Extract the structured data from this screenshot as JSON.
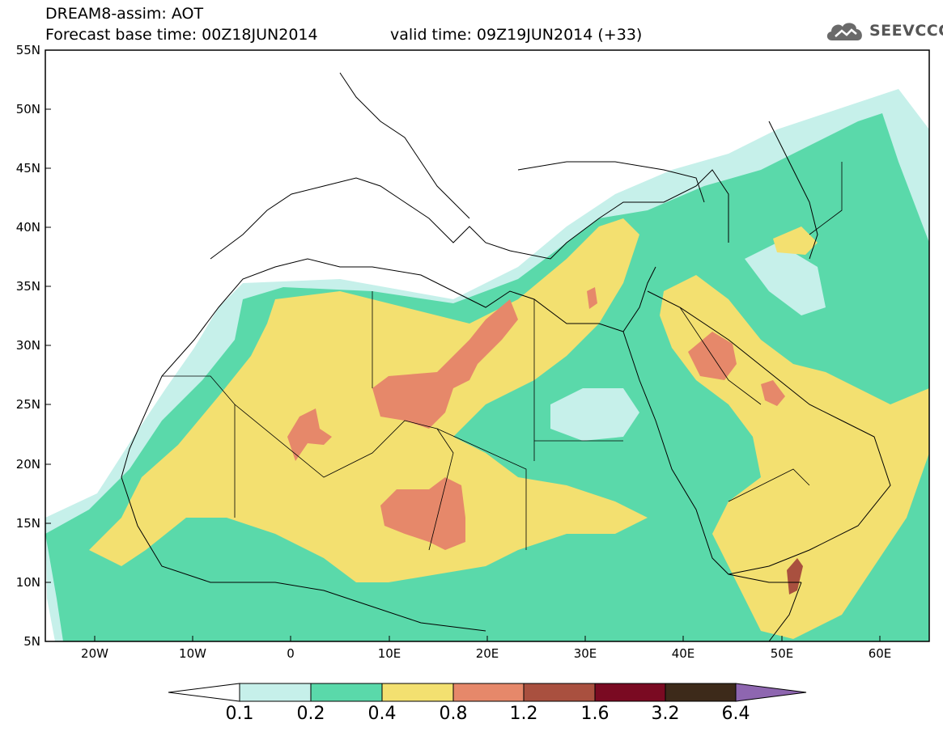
{
  "header": {
    "title_line1": "DREAM8-assim: AOT",
    "forecast_base": "Forecast base time: 00Z18JUN2014",
    "valid_time": "valid time: 09Z19JUN2014 (+33)"
  },
  "logo": {
    "text": "SEEVCCC",
    "icon": "cloud-logo-icon"
  },
  "axes": {
    "lat_ticks": [
      "55N",
      "50N",
      "45N",
      "40N",
      "35N",
      "30N",
      "25N",
      "20N",
      "15N",
      "10N",
      "5N"
    ],
    "lon_ticks": [
      "20W",
      "10W",
      "0",
      "10E",
      "20E",
      "30E",
      "40E",
      "50E",
      "60E"
    ],
    "lon_range": [
      -25,
      65
    ],
    "lat_range": [
      5,
      55
    ]
  },
  "legend": {
    "labels": [
      "0.1",
      "0.2",
      "0.4",
      "0.8",
      "1.2",
      "1.6",
      "3.2",
      "6.4"
    ],
    "colors": [
      "#ffffff",
      "#c6f0ea",
      "#5ad9aa",
      "#f3e070",
      "#e6886a",
      "#a9503f",
      "#7a0a22",
      "#3d2a1a",
      "#8e66b0"
    ]
  }
}
